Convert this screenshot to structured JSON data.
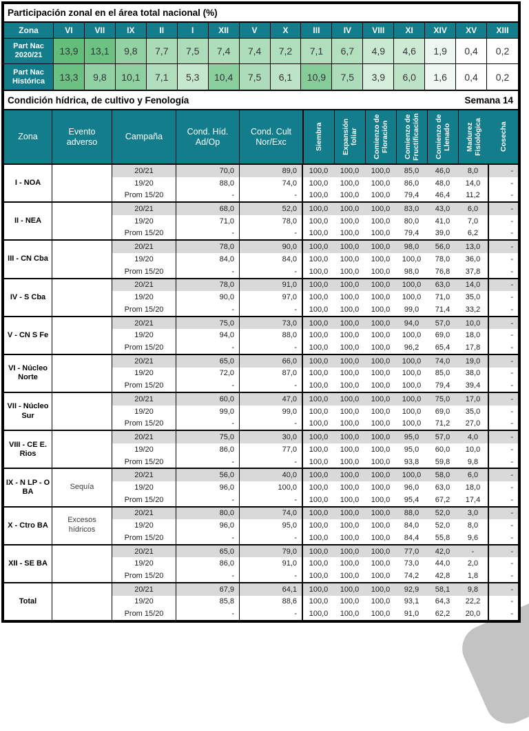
{
  "colors": {
    "teal": "#147D8B",
    "heat_green_max": "#63BE7B",
    "row_gray": "#D9D9D9",
    "watermark_gray": "#C3C3C3"
  },
  "top_table": {
    "title": "Participación zonal en el área total nacional (%)",
    "corner_label": "Zona",
    "row1_label": "Part Nac 2020/21",
    "row2_label": "Part Nac Histórica",
    "heat_min": 0.2,
    "heat_max": 13.9,
    "zone_order": [
      "VI",
      "VII",
      "IX",
      "II",
      "I",
      "XII",
      "V",
      "X",
      "III",
      "IV",
      "VIII",
      "XI",
      "XIV",
      "XV",
      "XIII"
    ],
    "part_nac_2020_21": [
      "13,9",
      "13,1",
      "9,8",
      "7,7",
      "7,5",
      "7,4",
      "7,4",
      "7,2",
      "7,1",
      "6,7",
      "4,9",
      "4,6",
      "1,9",
      "0,4",
      "0,2"
    ],
    "part_nac_historica": [
      "13,3",
      "9,8",
      "10,1",
      "7,1",
      "5,3",
      "10,4",
      "7,5",
      "6,1",
      "10,9",
      "7,5",
      "3,9",
      "6,0",
      "1,6",
      "0,4",
      "0,2"
    ]
  },
  "section": {
    "title": "Condición hídrica, de cultivo y Fenología",
    "week_label": "Semana 14"
  },
  "main_table": {
    "headers": {
      "zona": "Zona",
      "evento": "Evento adverso",
      "campana": "Campaña",
      "cond_hid": "Cond. Híd. Ad/Op",
      "cond_cult": "Cond. Cult Nor/Exc"
    },
    "vertical_headers": [
      "Siembra",
      "Expansión foliar",
      "Comienzo de Floración",
      "Comienzo de Fructificación",
      "Comienzo de Llenado",
      "Madurez Fisiológica",
      "Cosecha"
    ],
    "rows": [
      {
        "zone": "I - NOA",
        "evento": "",
        "campaigns": [
          {
            "label": "20/21",
            "cond_hid": "70,0",
            "cond_cult": "89,0",
            "phenology": [
              "100,0",
              "100,0",
              "100,0",
              "85,0",
              "46,0",
              "8,0",
              "-"
            ]
          },
          {
            "label": "19/20",
            "cond_hid": "88,0",
            "cond_cult": "74,0",
            "phenology": [
              "100,0",
              "100,0",
              "100,0",
              "86,0",
              "48,0",
              "14,0",
              "-"
            ]
          },
          {
            "label": "Prom 15/20",
            "cond_hid": "-",
            "cond_cult": "-",
            "phenology": [
              "100,0",
              "100,0",
              "100,0",
              "79,4",
              "46,4",
              "11,2",
              "-"
            ]
          }
        ]
      },
      {
        "zone": "II - NEA",
        "evento": "",
        "campaigns": [
          {
            "label": "20/21",
            "cond_hid": "68,0",
            "cond_cult": "52,0",
            "phenology": [
              "100,0",
              "100,0",
              "100,0",
              "83,0",
              "43,0",
              "6,0",
              "-"
            ]
          },
          {
            "label": "19/20",
            "cond_hid": "71,0",
            "cond_cult": "78,0",
            "phenology": [
              "100,0",
              "100,0",
              "100,0",
              "80,0",
              "41,0",
              "7,0",
              "-"
            ]
          },
          {
            "label": "Prom 15/20",
            "cond_hid": "-",
            "cond_cult": "-",
            "phenology": [
              "100,0",
              "100,0",
              "100,0",
              "79,4",
              "39,0",
              "6,2",
              "-"
            ]
          }
        ]
      },
      {
        "zone": "III - CN Cba",
        "evento": "",
        "campaigns": [
          {
            "label": "20/21",
            "cond_hid": "78,0",
            "cond_cult": "90,0",
            "phenology": [
              "100,0",
              "100,0",
              "100,0",
              "98,0",
              "56,0",
              "13,0",
              "-"
            ]
          },
          {
            "label": "19/20",
            "cond_hid": "84,0",
            "cond_cult": "84,0",
            "phenology": [
              "100,0",
              "100,0",
              "100,0",
              "100,0",
              "78,0",
              "36,0",
              "-"
            ]
          },
          {
            "label": "Prom 15/20",
            "cond_hid": "-",
            "cond_cult": "-",
            "phenology": [
              "100,0",
              "100,0",
              "100,0",
              "98,0",
              "76,8",
              "37,8",
              "-"
            ]
          }
        ]
      },
      {
        "zone": "IV - S Cba",
        "evento": "",
        "campaigns": [
          {
            "label": "20/21",
            "cond_hid": "78,0",
            "cond_cult": "91,0",
            "phenology": [
              "100,0",
              "100,0",
              "100,0",
              "100,0",
              "63,0",
              "14,0",
              "-"
            ]
          },
          {
            "label": "19/20",
            "cond_hid": "90,0",
            "cond_cult": "97,0",
            "phenology": [
              "100,0",
              "100,0",
              "100,0",
              "100,0",
              "71,0",
              "35,0",
              "-"
            ]
          },
          {
            "label": "Prom 15/20",
            "cond_hid": "-",
            "cond_cult": "-",
            "phenology": [
              "100,0",
              "100,0",
              "100,0",
              "99,0",
              "71,4",
              "33,2",
              "-"
            ]
          }
        ]
      },
      {
        "zone": "V - CN S Fe",
        "evento": "",
        "campaigns": [
          {
            "label": "20/21",
            "cond_hid": "75,0",
            "cond_cult": "73,0",
            "phenology": [
              "100,0",
              "100,0",
              "100,0",
              "94,0",
              "57,0",
              "10,0",
              "-"
            ]
          },
          {
            "label": "19/20",
            "cond_hid": "94,0",
            "cond_cult": "88,0",
            "phenology": [
              "100,0",
              "100,0",
              "100,0",
              "100,0",
              "69,0",
              "18,0",
              "-"
            ]
          },
          {
            "label": "Prom 15/20",
            "cond_hid": "-",
            "cond_cult": "-",
            "phenology": [
              "100,0",
              "100,0",
              "100,0",
              "96,2",
              "65,4",
              "17,8",
              "-"
            ]
          }
        ]
      },
      {
        "zone": "VI - Núcleo Norte",
        "evento": "",
        "campaigns": [
          {
            "label": "20/21",
            "cond_hid": "65,0",
            "cond_cult": "66,0",
            "phenology": [
              "100,0",
              "100,0",
              "100,0",
              "100,0",
              "74,0",
              "19,0",
              "-"
            ]
          },
          {
            "label": "19/20",
            "cond_hid": "72,0",
            "cond_cult": "87,0",
            "phenology": [
              "100,0",
              "100,0",
              "100,0",
              "100,0",
              "85,0",
              "38,0",
              "-"
            ]
          },
          {
            "label": "Prom 15/20",
            "cond_hid": "-",
            "cond_cult": "-",
            "phenology": [
              "100,0",
              "100,0",
              "100,0",
              "100,0",
              "79,4",
              "39,4",
              "-"
            ]
          }
        ]
      },
      {
        "zone": "VII - Núcleo Sur",
        "evento": "",
        "campaigns": [
          {
            "label": "20/21",
            "cond_hid": "60,0",
            "cond_cult": "47,0",
            "phenology": [
              "100,0",
              "100,0",
              "100,0",
              "100,0",
              "75,0",
              "17,0",
              "-"
            ]
          },
          {
            "label": "19/20",
            "cond_hid": "99,0",
            "cond_cult": "99,0",
            "phenology": [
              "100,0",
              "100,0",
              "100,0",
              "100,0",
              "69,0",
              "35,0",
              "-"
            ]
          },
          {
            "label": "Prom 15/20",
            "cond_hid": "-",
            "cond_cult": "-",
            "phenology": [
              "100,0",
              "100,0",
              "100,0",
              "100,0",
              "71,2",
              "27,0",
              "-"
            ]
          }
        ]
      },
      {
        "zone": "VIII - CE E. Rios",
        "evento": "",
        "campaigns": [
          {
            "label": "20/21",
            "cond_hid": "75,0",
            "cond_cult": "30,0",
            "phenology": [
              "100,0",
              "100,0",
              "100,0",
              "95,0",
              "57,0",
              "4,0",
              "-"
            ]
          },
          {
            "label": "19/20",
            "cond_hid": "86,0",
            "cond_cult": "77,0",
            "phenology": [
              "100,0",
              "100,0",
              "100,0",
              "95,0",
              "60,0",
              "10,0",
              "-"
            ]
          },
          {
            "label": "Prom 15/20",
            "cond_hid": "-",
            "cond_cult": "-",
            "phenology": [
              "100,0",
              "100,0",
              "100,0",
              "93,8",
              "59,8",
              "9,8",
              "-"
            ]
          }
        ]
      },
      {
        "zone": "IX - N LP - O BA",
        "evento": "Sequía",
        "campaigns": [
          {
            "label": "20/21",
            "cond_hid": "56,0",
            "cond_cult": "40,0",
            "phenology": [
              "100,0",
              "100,0",
              "100,0",
              "100,0",
              "58,0",
              "6,0",
              "-"
            ]
          },
          {
            "label": "19/20",
            "cond_hid": "96,0",
            "cond_cult": "100,0",
            "phenology": [
              "100,0",
              "100,0",
              "100,0",
              "96,0",
              "63,0",
              "18,0",
              "-"
            ]
          },
          {
            "label": "Prom 15/20",
            "cond_hid": "-",
            "cond_cult": "-",
            "phenology": [
              "100,0",
              "100,0",
              "100,0",
              "95,4",
              "67,2",
              "17,4",
              "-"
            ]
          }
        ]
      },
      {
        "zone": "X - Ctro BA",
        "evento": "Excesos hídricos",
        "campaigns": [
          {
            "label": "20/21",
            "cond_hid": "80,0",
            "cond_cult": "74,0",
            "phenology": [
              "100,0",
              "100,0",
              "100,0",
              "88,0",
              "52,0",
              "3,0",
              "-"
            ]
          },
          {
            "label": "19/20",
            "cond_hid": "96,0",
            "cond_cult": "95,0",
            "phenology": [
              "100,0",
              "100,0",
              "100,0",
              "84,0",
              "52,0",
              "8,0",
              "-"
            ]
          },
          {
            "label": "Prom 15/20",
            "cond_hid": "-",
            "cond_cult": "-",
            "phenology": [
              "100,0",
              "100,0",
              "100,0",
              "84,4",
              "55,8",
              "9,6",
              "-"
            ]
          }
        ]
      },
      {
        "zone": "XII - SE BA",
        "evento": "",
        "campaigns": [
          {
            "label": "20/21",
            "cond_hid": "65,0",
            "cond_cult": "79,0",
            "phenology": [
              "100,0",
              "100,0",
              "100,0",
              "77,0",
              "42,0",
              "-",
              "-"
            ]
          },
          {
            "label": "19/20",
            "cond_hid": "86,0",
            "cond_cult": "91,0",
            "phenology": [
              "100,0",
              "100,0",
              "100,0",
              "73,0",
              "44,0",
              "2,0",
              "-"
            ]
          },
          {
            "label": "Prom 15/20",
            "cond_hid": "-",
            "cond_cult": "-",
            "phenology": [
              "100,0",
              "100,0",
              "100,0",
              "74,2",
              "42,8",
              "1,8",
              "-"
            ]
          }
        ]
      },
      {
        "zone": "Total",
        "evento": "",
        "campaigns": [
          {
            "label": "20/21",
            "cond_hid": "67,9",
            "cond_cult": "64,1",
            "phenology": [
              "100,0",
              "100,0",
              "100,0",
              "92,9",
              "58,1",
              "9,8",
              "-"
            ]
          },
          {
            "label": "19/20",
            "cond_hid": "85,8",
            "cond_cult": "88,6",
            "phenology": [
              "100,0",
              "100,0",
              "100,0",
              "93,1",
              "64,3",
              "22,2",
              "-"
            ]
          },
          {
            "label": "Prom 15/20",
            "cond_hid": "-",
            "cond_cult": "-",
            "phenology": [
              "100,0",
              "100,0",
              "100,0",
              "91,0",
              "62,2",
              "20,0",
              "-"
            ]
          }
        ]
      }
    ]
  }
}
